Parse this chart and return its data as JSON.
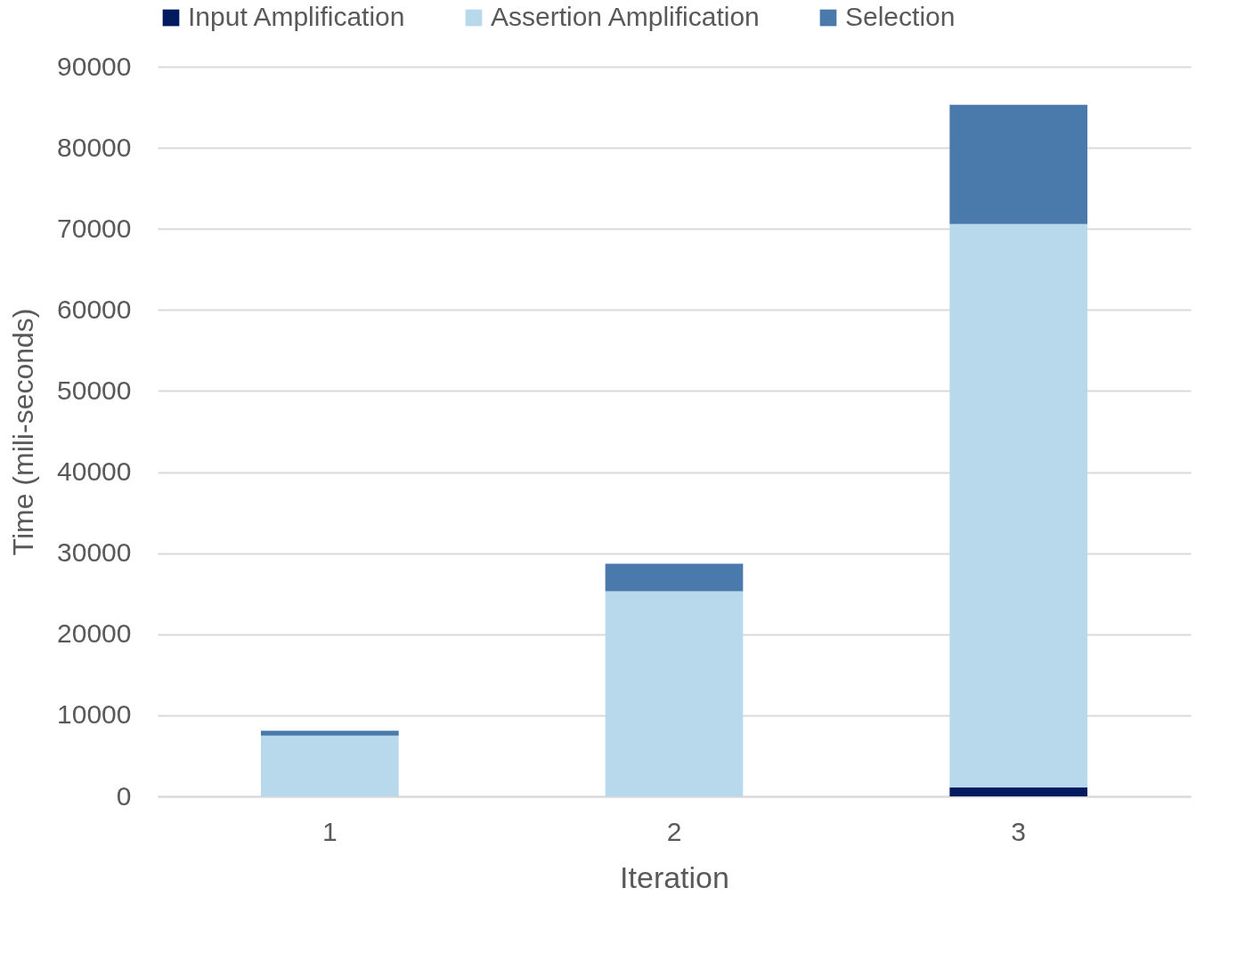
{
  "chart_data": {
    "type": "bar",
    "stacked": true,
    "xlabel": "Iteration",
    "ylabel": "Time (mili-seconds)",
    "categories": [
      "1",
      "2",
      "3"
    ],
    "series": [
      {
        "name": "Input Amplification",
        "color": "#011b5e",
        "values": [
          0,
          0,
          1100
        ]
      },
      {
        "name": "Assertion Amplification",
        "color": "#b8d8ec",
        "values": [
          7500,
          25300,
          69500
        ]
      },
      {
        "name": "Selection",
        "color": "#4a7aab",
        "values": [
          600,
          3400,
          14700
        ]
      }
    ],
    "ylim": [
      0,
      90000
    ],
    "yticks": [
      0,
      10000,
      20000,
      30000,
      40000,
      50000,
      60000,
      70000,
      80000,
      90000
    ],
    "grid": "y",
    "legend": "top"
  }
}
